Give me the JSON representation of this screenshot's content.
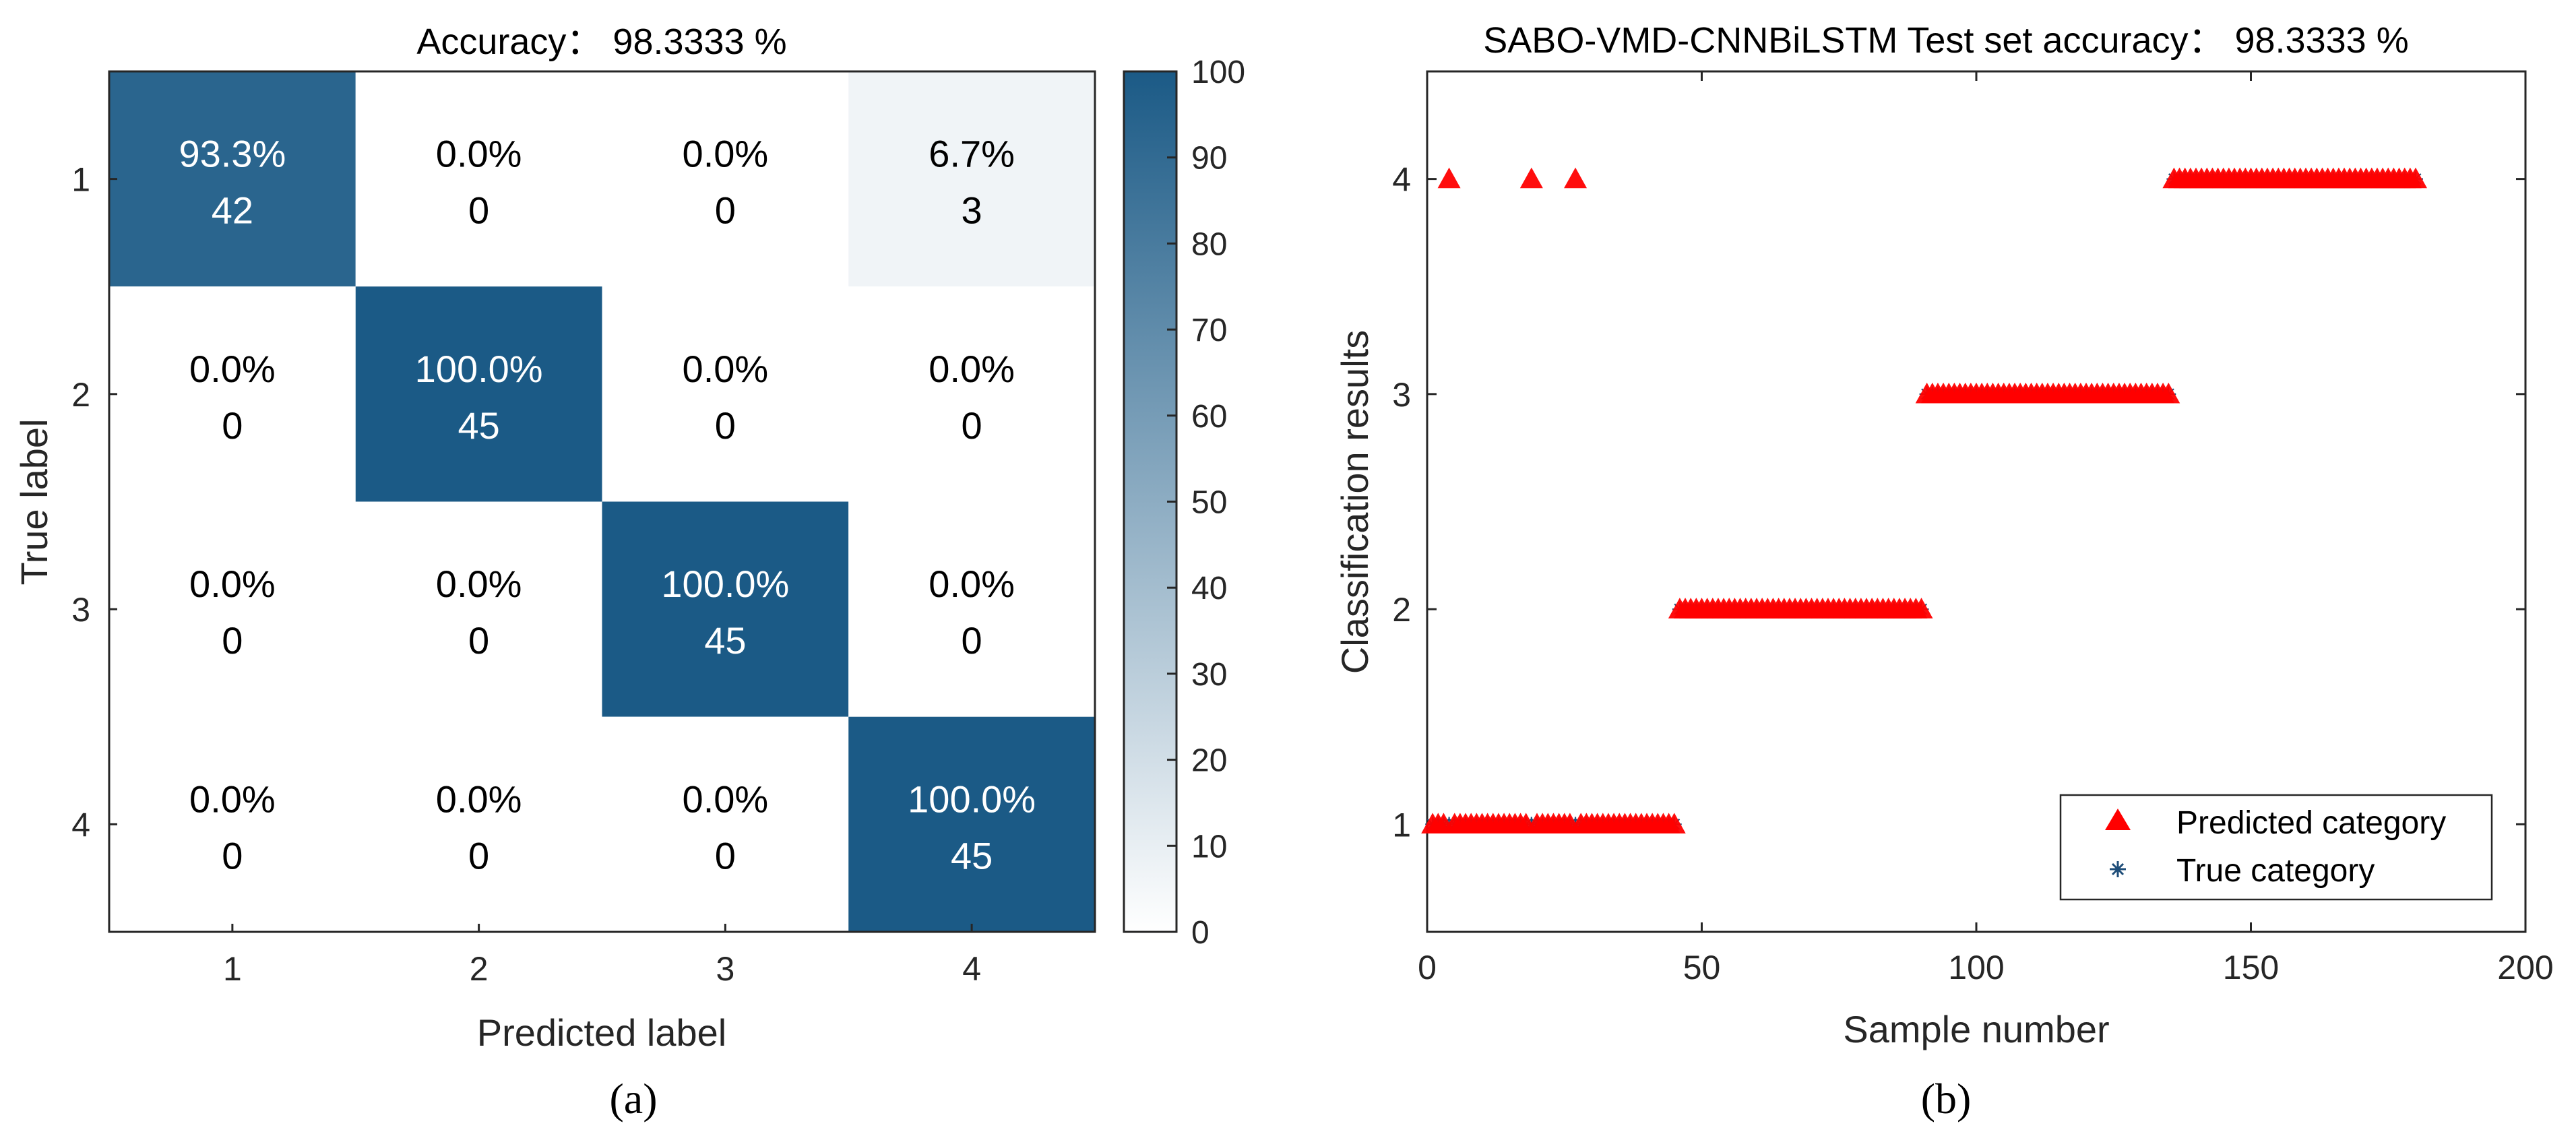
{
  "colors": {
    "dark": "#1b5a86",
    "light": "#ffffff",
    "predicted": "#ff0000",
    "true": "#1f4e79",
    "axis": "#262626"
  },
  "chart_data": [
    {
      "id": "a",
      "type": "heatmap",
      "panel_label": "(a)",
      "title": "Accuracy： 98.3333 %",
      "xlabel": "Predicted label",
      "ylabel": "True label",
      "x_categories": [
        "1",
        "2",
        "3",
        "4"
      ],
      "y_categories": [
        "1",
        "2",
        "3",
        "4"
      ],
      "percent": [
        [
          93.3,
          0.0,
          0.0,
          6.7
        ],
        [
          0.0,
          100.0,
          0.0,
          0.0
        ],
        [
          0.0,
          0.0,
          100.0,
          0.0
        ],
        [
          0.0,
          0.0,
          0.0,
          100.0
        ]
      ],
      "cell_text": [
        [
          [
            "93.3%",
            "42"
          ],
          [
            "0.0%",
            "0"
          ],
          [
            "0.0%",
            "0"
          ],
          [
            "6.7%",
            "3"
          ]
        ],
        [
          [
            "0.0%",
            "0"
          ],
          [
            "100.0%",
            "45"
          ],
          [
            "0.0%",
            "0"
          ],
          [
            "0.0%",
            "0"
          ]
        ],
        [
          [
            "0.0%",
            "0"
          ],
          [
            "0.0%",
            "0"
          ],
          [
            "100.0%",
            "45"
          ],
          [
            "0.0%",
            "0"
          ]
        ],
        [
          [
            "0.0%",
            "0"
          ],
          [
            "0.0%",
            "0"
          ],
          [
            "0.0%",
            "0"
          ],
          [
            "100.0%",
            "45"
          ]
        ]
      ],
      "colorbar": {
        "range": [
          0,
          100
        ],
        "ticks": [
          "0",
          "10",
          "20",
          "30",
          "40",
          "50",
          "60",
          "70",
          "80",
          "90",
          "100"
        ]
      }
    },
    {
      "id": "b",
      "type": "scatter",
      "panel_label": "(b)",
      "title": "SABO-VMD-CNNBiLSTM Test set accuracy：  98.3333 %",
      "xlabel": "Sample number",
      "ylabel": "Classification results",
      "xlim": [
        0,
        200
      ],
      "ylim": [
        0.5,
        4.5
      ],
      "x_ticks": [
        "0",
        "50",
        "100",
        "150",
        "200"
      ],
      "y_ticks": [
        "1",
        "2",
        "3",
        "4"
      ],
      "series": [
        {
          "name": "Predicted category",
          "marker": "triangle",
          "segments": [
            {
              "x_start": 1,
              "x_end": 45,
              "y": 1,
              "exceptions": {
                "4": 4,
                "19": 4,
                "27": 4
              }
            },
            {
              "x_start": 46,
              "x_end": 90,
              "y": 2
            },
            {
              "x_start": 91,
              "x_end": 135,
              "y": 3
            },
            {
              "x_start": 136,
              "x_end": 180,
              "y": 4
            }
          ]
        },
        {
          "name": "True category",
          "marker": "asterisk",
          "segments": [
            {
              "x_start": 1,
              "x_end": 45,
              "y": 1
            },
            {
              "x_start": 46,
              "x_end": 90,
              "y": 2
            },
            {
              "x_start": 91,
              "x_end": 135,
              "y": 3
            },
            {
              "x_start": 136,
              "x_end": 180,
              "y": 4
            }
          ]
        }
      ],
      "legend": {
        "position": "bottom-right",
        "entries": [
          "Predicted category",
          "True category"
        ]
      }
    }
  ]
}
